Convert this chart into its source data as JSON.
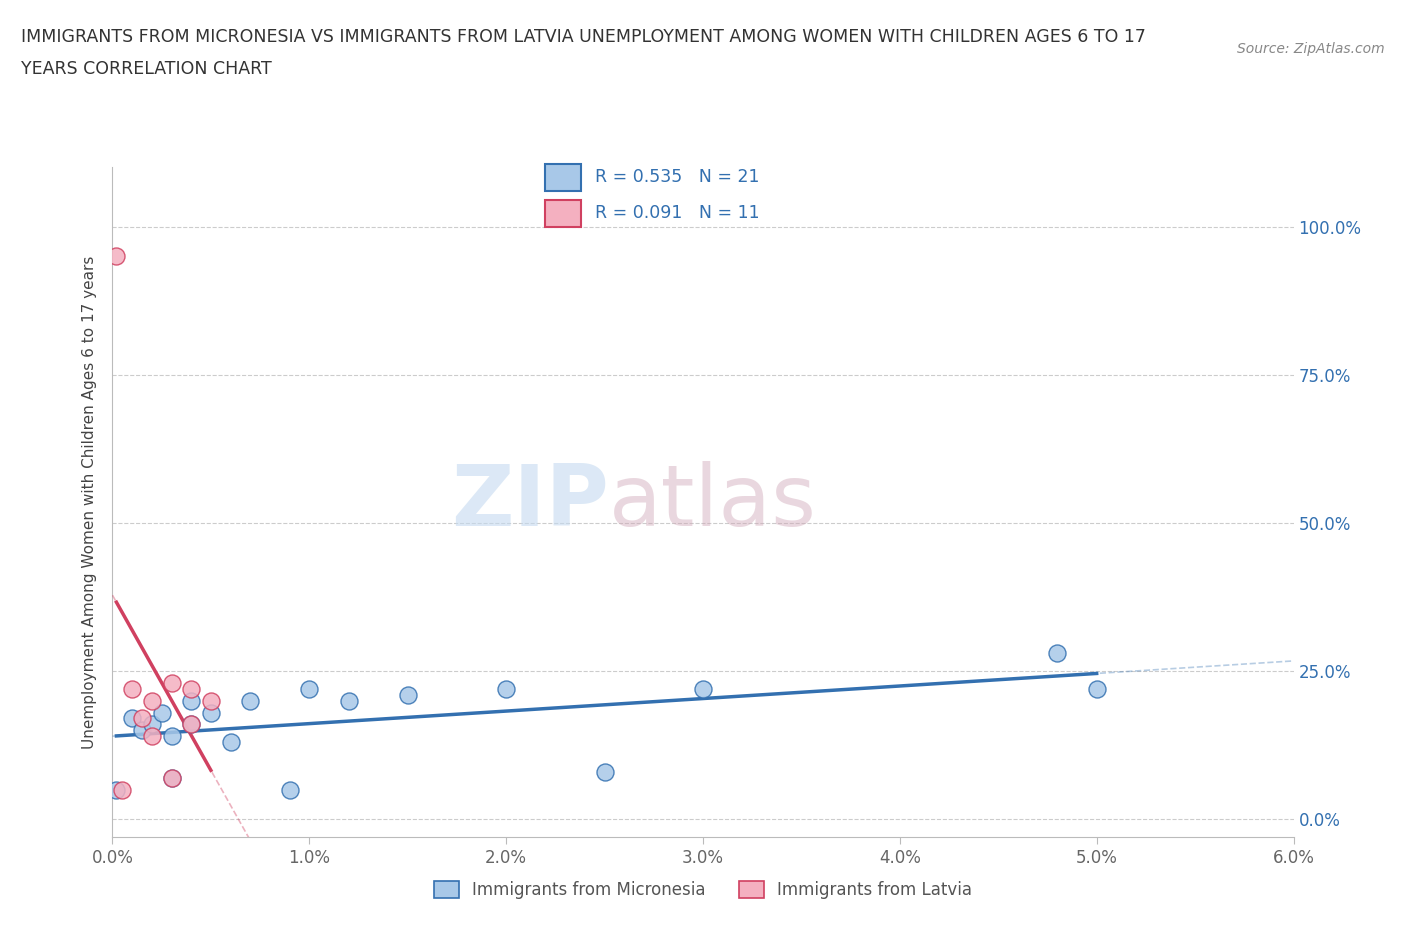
{
  "title_line1": "IMMIGRANTS FROM MICRONESIA VS IMMIGRANTS FROM LATVIA UNEMPLOYMENT AMONG WOMEN WITH CHILDREN AGES 6 TO 17",
  "title_line2": "YEARS CORRELATION CHART",
  "source": "Source: ZipAtlas.com",
  "xlabel_range": [
    0.0,
    0.06
  ],
  "ylabel_range": [
    -0.03,
    1.1
  ],
  "ylabel_label": "Unemployment Among Women with Children Ages 6 to 17 years",
  "watermark_zip": "ZIP",
  "watermark_atlas": "atlas",
  "micronesia_color": "#a8c8e8",
  "latvia_color": "#f4b0c0",
  "micronesia_R": 0.535,
  "micronesia_N": 21,
  "latvia_R": 0.091,
  "latvia_N": 11,
  "micronesia_x": [
    0.0002,
    0.001,
    0.0015,
    0.002,
    0.0025,
    0.003,
    0.003,
    0.004,
    0.004,
    0.005,
    0.006,
    0.007,
    0.009,
    0.01,
    0.012,
    0.015,
    0.02,
    0.025,
    0.03,
    0.048,
    0.05
  ],
  "micronesia_y": [
    0.05,
    0.17,
    0.15,
    0.16,
    0.18,
    0.07,
    0.14,
    0.16,
    0.2,
    0.18,
    0.13,
    0.2,
    0.05,
    0.22,
    0.2,
    0.21,
    0.22,
    0.08,
    0.22,
    0.28,
    0.22
  ],
  "latvia_x": [
    0.0002,
    0.0005,
    0.001,
    0.0015,
    0.002,
    0.002,
    0.003,
    0.003,
    0.004,
    0.004,
    0.005
  ],
  "latvia_y": [
    0.95,
    0.05,
    0.22,
    0.17,
    0.14,
    0.2,
    0.23,
    0.07,
    0.22,
    0.16,
    0.2
  ],
  "micronesia_line_color": "#3370b0",
  "latvia_line_color": "#d04060",
  "grid_color": "#cccccc",
  "background_color": "#ffffff",
  "legend_text_color": "#3370b0",
  "title_color": "#333333",
  "ylabel_color": "#444444",
  "ytick_color": "#3370b0",
  "xtick_color": "#666666"
}
